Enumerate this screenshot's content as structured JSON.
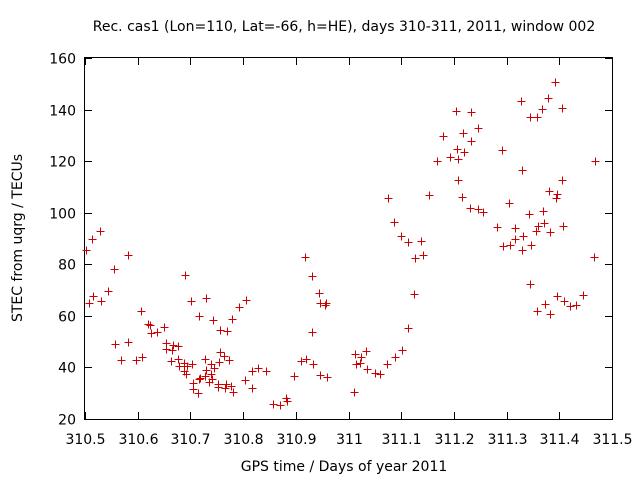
{
  "chart_data": {
    "type": "scatter",
    "title": "Rec. cas1 (Lon=110, Lat=-66, h=HE), days 310-311, 2011, window 002",
    "xlabel": "GPS time / Days of year 2011",
    "ylabel": "STEC from uqrg / TECUs",
    "xlim": [
      310.5,
      311.5
    ],
    "ylim": [
      20,
      160
    ],
    "x_ticks": [
      310.5,
      310.6,
      310.7,
      310.8,
      310.9,
      311.0,
      311.1,
      311.2,
      311.3,
      311.4,
      311.5
    ],
    "x_tick_labels": [
      "310.5",
      "310.6",
      "310.7",
      "310.8",
      "310.9",
      "311",
      "311.1",
      "311.2",
      "311.3",
      "311.4",
      "311.5"
    ],
    "y_ticks": [
      20,
      40,
      60,
      80,
      100,
      120,
      140,
      160
    ],
    "y_tick_labels": [
      "20",
      "40",
      "60",
      "80",
      "100",
      "120",
      "140",
      "160"
    ],
    "grid": false,
    "marker": "+",
    "color": "#cc0000",
    "points": [
      [
        310.502,
        85.5
      ],
      [
        310.507,
        65.1
      ],
      [
        310.514,
        90.0
      ],
      [
        310.516,
        67.8
      ],
      [
        310.529,
        93.1
      ],
      [
        310.53,
        65.9
      ],
      [
        310.543,
        69.8
      ],
      [
        310.555,
        78.0
      ],
      [
        310.556,
        49.0
      ],
      [
        310.568,
        42.9
      ],
      [
        310.581,
        50.0
      ],
      [
        310.582,
        83.5
      ],
      [
        310.596,
        42.9
      ],
      [
        310.606,
        61.8
      ],
      [
        310.608,
        43.9
      ],
      [
        310.62,
        56.9
      ],
      [
        310.624,
        56.3
      ],
      [
        310.625,
        53.3
      ],
      [
        310.637,
        53.7
      ],
      [
        310.649,
        55.5
      ],
      [
        310.653,
        49.6
      ],
      [
        310.654,
        47.1
      ],
      [
        310.663,
        42.3
      ],
      [
        310.665,
        46.9
      ],
      [
        310.667,
        48.6
      ],
      [
        310.676,
        43.3
      ],
      [
        310.677,
        48.2
      ],
      [
        310.678,
        40.7
      ],
      [
        310.687,
        38.8
      ],
      [
        310.688,
        41.9
      ],
      [
        310.69,
        75.7
      ],
      [
        310.692,
        37.6
      ],
      [
        310.694,
        40.6
      ],
      [
        310.701,
        65.9
      ],
      [
        310.703,
        41.2
      ],
      [
        310.704,
        34.0
      ],
      [
        310.705,
        31.8
      ],
      [
        310.715,
        30.0
      ],
      [
        310.716,
        35.4
      ],
      [
        310.717,
        59.8
      ],
      [
        310.719,
        36.0
      ],
      [
        310.727,
        36.8
      ],
      [
        310.728,
        43.2
      ],
      [
        310.729,
        39.0
      ],
      [
        310.73,
        66.9
      ],
      [
        310.736,
        34.3
      ],
      [
        310.739,
        41.4
      ],
      [
        310.74,
        37.3
      ],
      [
        310.741,
        35.6
      ],
      [
        310.743,
        58.2
      ],
      [
        310.745,
        39.7
      ],
      [
        310.752,
        33.4
      ],
      [
        310.753,
        32.3
      ],
      [
        310.755,
        42.0
      ],
      [
        310.756,
        46.0
      ],
      [
        310.757,
        54.7
      ],
      [
        310.764,
        44.5
      ],
      [
        310.765,
        32.0
      ],
      [
        310.768,
        33.7
      ],
      [
        310.77,
        54.3
      ],
      [
        310.774,
        42.9
      ],
      [
        310.777,
        32.9
      ],
      [
        310.779,
        58.7
      ],
      [
        310.78,
        30.4
      ],
      [
        310.793,
        63.5
      ],
      [
        310.803,
        35.3
      ],
      [
        310.805,
        66.3
      ],
      [
        310.816,
        32.0
      ],
      [
        310.817,
        38.7
      ],
      [
        310.829,
        39.7
      ],
      [
        310.843,
        38.6
      ],
      [
        310.856,
        25.8
      ],
      [
        310.87,
        25.5
      ],
      [
        310.882,
        28.2
      ],
      [
        310.883,
        27.0
      ],
      [
        310.896,
        36.6
      ],
      [
        310.909,
        42.4
      ],
      [
        310.918,
        82.8
      ],
      [
        310.92,
        43.4
      ],
      [
        310.93,
        75.6
      ],
      [
        310.931,
        53.8
      ],
      [
        310.932,
        41.2
      ],
      [
        310.944,
        69.0
      ],
      [
        310.945,
        64.9
      ],
      [
        310.946,
        37.1
      ],
      [
        310.956,
        64.1
      ],
      [
        310.958,
        65.0
      ],
      [
        310.959,
        36.3
      ],
      [
        311.01,
        30.5
      ],
      [
        311.012,
        45.3
      ],
      [
        311.014,
        41.2
      ],
      [
        311.022,
        41.9
      ],
      [
        311.023,
        44.0
      ],
      [
        311.034,
        46.4
      ],
      [
        311.036,
        39.4
      ],
      [
        311.05,
        37.8
      ],
      [
        311.06,
        37.6
      ],
      [
        311.073,
        41.2
      ],
      [
        311.075,
        105.6
      ],
      [
        311.087,
        96.4
      ],
      [
        311.088,
        44.0
      ],
      [
        311.1,
        90.9
      ],
      [
        311.101,
        46.8
      ],
      [
        311.112,
        88.5
      ],
      [
        311.113,
        55.3
      ],
      [
        311.125,
        68.3
      ],
      [
        311.127,
        82.5
      ],
      [
        311.138,
        89.2
      ],
      [
        311.141,
        83.6
      ],
      [
        311.152,
        106.8
      ],
      [
        311.168,
        120.0
      ],
      [
        311.18,
        129.9
      ],
      [
        311.192,
        121.8
      ],
      [
        311.204,
        139.4
      ],
      [
        311.205,
        124.8
      ],
      [
        311.207,
        112.5
      ],
      [
        311.208,
        121.0
      ],
      [
        311.215,
        106.1
      ],
      [
        311.218,
        130.8
      ],
      [
        311.22,
        123.5
      ],
      [
        311.231,
        101.7
      ],
      [
        311.232,
        127.7
      ],
      [
        311.233,
        139.0
      ],
      [
        311.245,
        101.3
      ],
      [
        311.246,
        132.7
      ],
      [
        311.256,
        100.4
      ],
      [
        311.281,
        94.6
      ],
      [
        311.292,
        124.5
      ],
      [
        311.294,
        87.2
      ],
      [
        311.305,
        103.6
      ],
      [
        311.307,
        87.5
      ],
      [
        311.315,
        94.2
      ],
      [
        311.316,
        89.7
      ],
      [
        311.328,
        143.5
      ],
      [
        311.329,
        116.4
      ],
      [
        311.33,
        85.7
      ],
      [
        311.331,
        90.9
      ],
      [
        311.343,
        99.5
      ],
      [
        311.344,
        137.2
      ],
      [
        311.345,
        72.3
      ],
      [
        311.346,
        87.4
      ],
      [
        311.355,
        92.8
      ],
      [
        311.357,
        137.2
      ],
      [
        311.358,
        61.7
      ],
      [
        311.36,
        94.9
      ],
      [
        311.367,
        140.4
      ],
      [
        311.369,
        100.6
      ],
      [
        311.371,
        96.1
      ],
      [
        311.372,
        64.6
      ],
      [
        311.379,
        144.3
      ],
      [
        311.381,
        108.6
      ],
      [
        311.382,
        92.6
      ],
      [
        311.383,
        60.8
      ],
      [
        311.392,
        150.7
      ],
      [
        311.394,
        105.9
      ],
      [
        311.395,
        107.2
      ],
      [
        311.396,
        67.6
      ],
      [
        311.405,
        112.8
      ],
      [
        311.406,
        140.7
      ],
      [
        311.407,
        94.7
      ],
      [
        311.408,
        65.9
      ],
      [
        311.42,
        63.7
      ],
      [
        311.432,
        64.2
      ],
      [
        311.445,
        68.0
      ],
      [
        311.465,
        82.7
      ],
      [
        311.467,
        119.9
      ]
    ]
  }
}
